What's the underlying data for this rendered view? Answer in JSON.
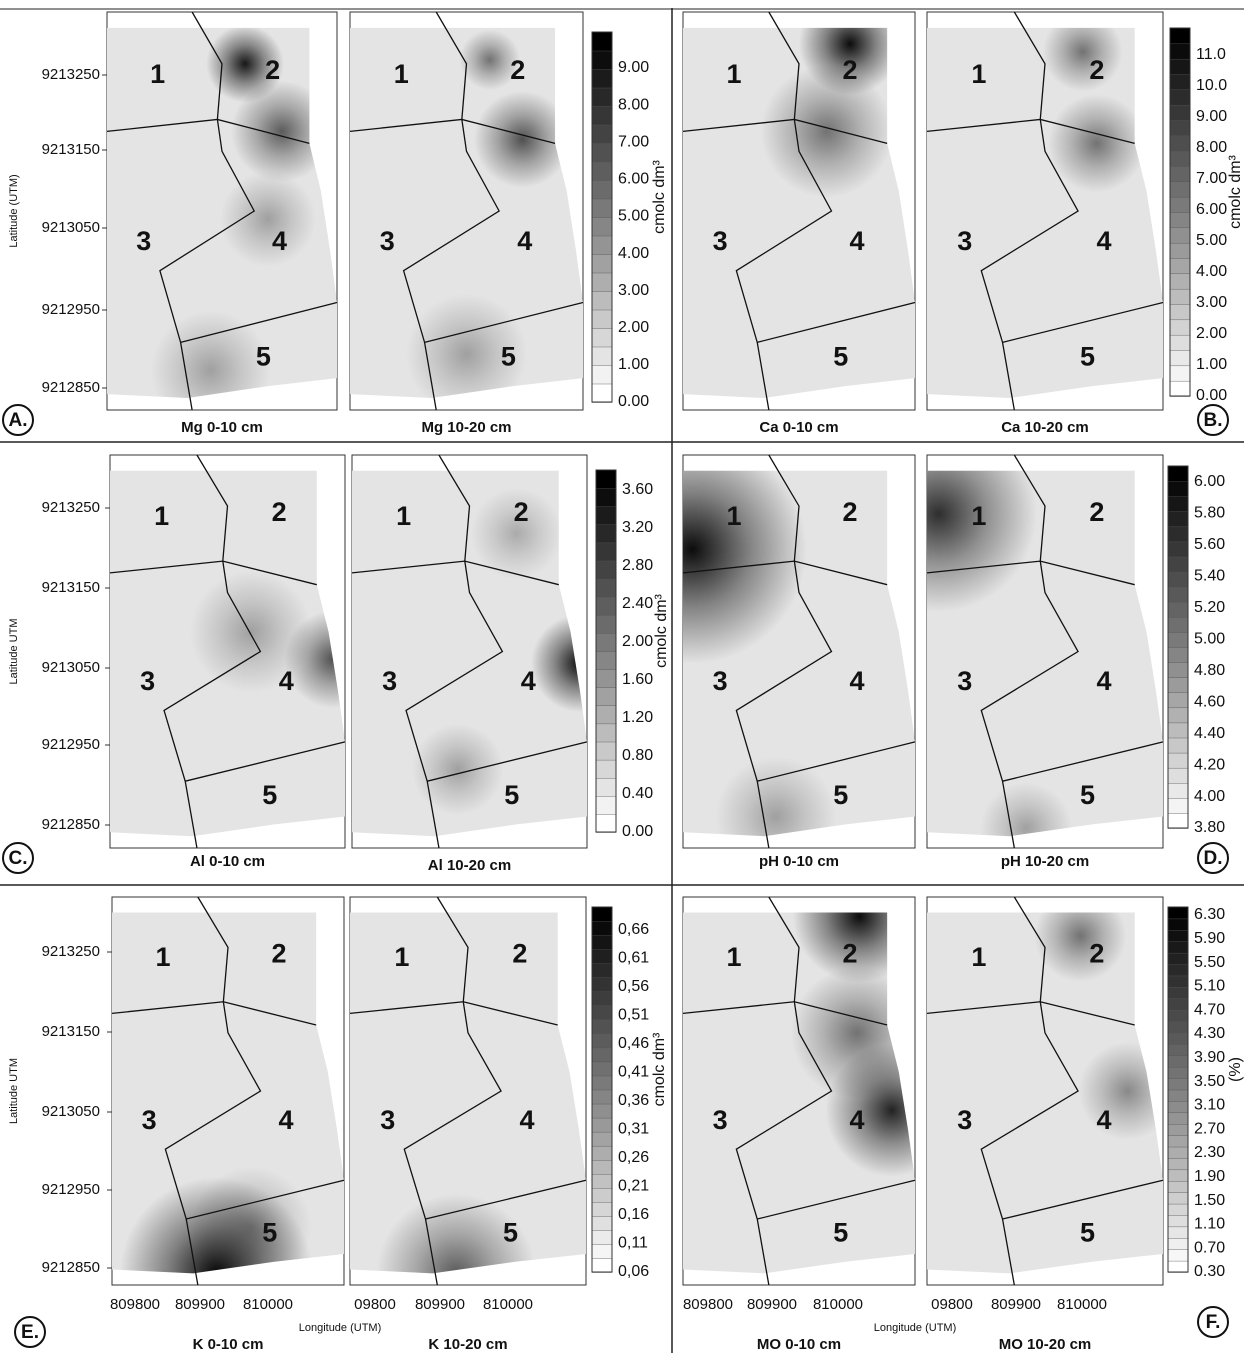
{
  "zone_labels": [
    "1",
    "2",
    "3",
    "4",
    "5"
  ],
  "panels": [
    {
      "letter": "A.",
      "y_axis_label": "Latitude (UTM)",
      "y_ticks": [
        "9213250",
        "9213150",
        "9213050",
        "9212950",
        "9212850"
      ],
      "maps": [
        {
          "title": "Mg 0-10 cm"
        },
        {
          "title": "Mg 10-20 cm"
        }
      ],
      "colorbar": {
        "unit": "cmolc dm³",
        "ticks": [
          "0.00",
          "1.00",
          "2.00",
          "3.00",
          "4.00",
          "5.00",
          "6.00",
          "7.00",
          "8.00",
          "9.00"
        ]
      }
    },
    {
      "letter": "B.",
      "maps": [
        {
          "title": "Ca 0-10 cm"
        },
        {
          "title": "Ca 10-20 cm"
        }
      ],
      "colorbar": {
        "unit": "cmolc dm³",
        "ticks": [
          "0.00",
          "1.00",
          "2.00",
          "3.00",
          "4.00",
          "5.00",
          "6.00",
          "7.00",
          "8.00",
          "9.00",
          "10.0",
          "11.0"
        ]
      }
    },
    {
      "letter": "C.",
      "y_axis_label": "Latitude UTM",
      "y_ticks": [
        "9213250",
        "9213150",
        "9213050",
        "9212950",
        "9212850"
      ],
      "maps": [
        {
          "title": "Al 0-10 cm"
        },
        {
          "title": "Al 10-20 cm"
        }
      ],
      "colorbar": {
        "unit": "cmolc dm³",
        "ticks": [
          "0.00",
          "0.40",
          "0.80",
          "1.20",
          "1.60",
          "2.00",
          "2.40",
          "2.80",
          "3.20",
          "3.60"
        ]
      }
    },
    {
      "letter": "D.",
      "maps": [
        {
          "title": "pH 0-10 cm"
        },
        {
          "title": "pH 10-20 cm"
        }
      ],
      "colorbar": {
        "ticks": [
          "3.80",
          "4.00",
          "4.20",
          "4.40",
          "4.60",
          "4.80",
          "5.00",
          "5.20",
          "5.40",
          "5.60",
          "5.80",
          "6.00"
        ]
      }
    },
    {
      "letter": "E.",
      "y_axis_label": "Latitude UTM",
      "y_ticks": [
        "9213250",
        "9213150",
        "9213050",
        "9212950",
        "9212850"
      ],
      "x_axis_label": "Longitude (UTM)",
      "maps": [
        {
          "title": "K 0-10 cm",
          "x_ticks": [
            "809800",
            "809900",
            "810000"
          ]
        },
        {
          "title": "K 10-20 cm",
          "x_ticks": [
            "09800",
            "809900",
            "810000"
          ]
        }
      ],
      "colorbar": {
        "unit": "cmolc dm³",
        "ticks": [
          "0,06",
          "0,11",
          "0,16",
          "0,21",
          "0,26",
          "0,31",
          "0,36",
          "0,41",
          "0,46",
          "0,51",
          "0,56",
          "0,61",
          "0,66"
        ]
      }
    },
    {
      "letter": "F.",
      "x_axis_label": "Longitude (UTM)",
      "maps": [
        {
          "title": "MO 0-10 cm",
          "x_ticks": [
            "809800",
            "809900",
            "810000"
          ]
        },
        {
          "title": "MO 10-20 cm",
          "x_ticks": [
            "09800",
            "809900",
            "810000"
          ]
        }
      ],
      "colorbar": {
        "unit": "(%)",
        "ticks": [
          "0.30",
          "0.70",
          "1.10",
          "1.50",
          "1.90",
          "2.30",
          "2.70",
          "3.10",
          "3.50",
          "3.90",
          "4.30",
          "4.70",
          "5.10",
          "5.50",
          "5.90",
          "6.30"
        ]
      }
    }
  ]
}
